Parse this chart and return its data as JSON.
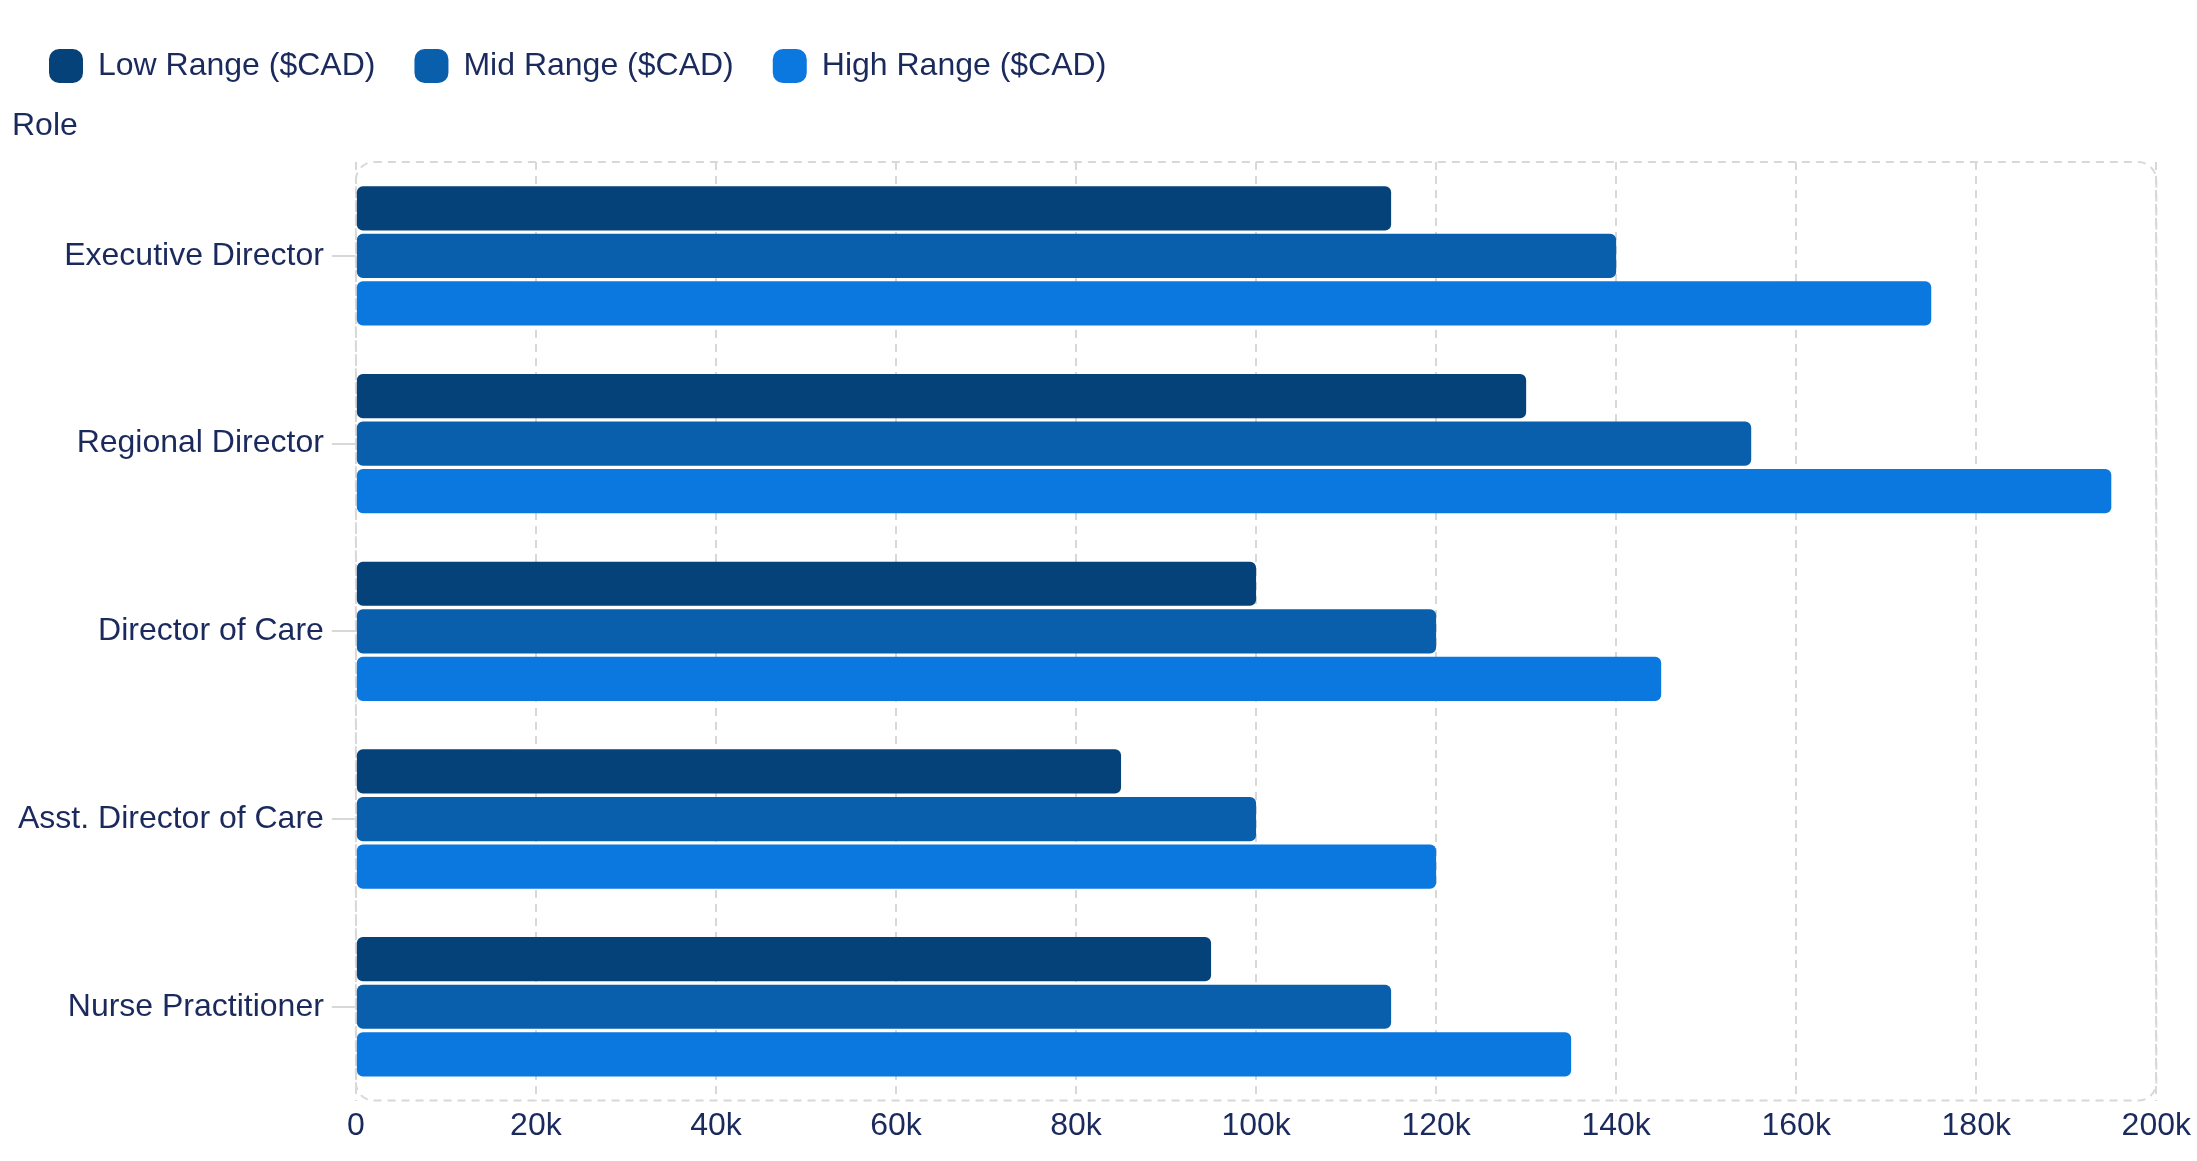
{
  "chart_data": {
    "type": "bar",
    "orientation": "horizontal",
    "ylabel": "Role",
    "categories": [
      "Executive Director",
      "Regional Director",
      "Director of Care",
      "Asst. Director of Care",
      "Nurse Practitioner"
    ],
    "series": [
      {
        "name": "Low Range ($CAD)",
        "color": "#054279",
        "values": [
          115000,
          130000,
          100000,
          85000,
          95000
        ]
      },
      {
        "name": "Mid Range ($CAD)",
        "color": "#0a5fad",
        "values": [
          140000,
          155000,
          120000,
          100000,
          115000
        ]
      },
      {
        "name": "High Range ($CAD)",
        "color": "#0b78e0",
        "values": [
          175000,
          195000,
          145000,
          120000,
          135000
        ]
      }
    ],
    "xlim": [
      0,
      200000
    ],
    "xticks": [
      {
        "value": 0,
        "label": "0"
      },
      {
        "value": 20000,
        "label": "20k"
      },
      {
        "value": 40000,
        "label": "40k"
      },
      {
        "value": 60000,
        "label": "60k"
      },
      {
        "value": 80000,
        "label": "80k"
      },
      {
        "value": 100000,
        "label": "100k"
      },
      {
        "value": 120000,
        "label": "120k"
      },
      {
        "value": 140000,
        "label": "140k"
      },
      {
        "value": 160000,
        "label": "160k"
      },
      {
        "value": 180000,
        "label": "180k"
      },
      {
        "value": 200000,
        "label": "200k"
      }
    ],
    "grid": "x",
    "legend": "top left"
  }
}
